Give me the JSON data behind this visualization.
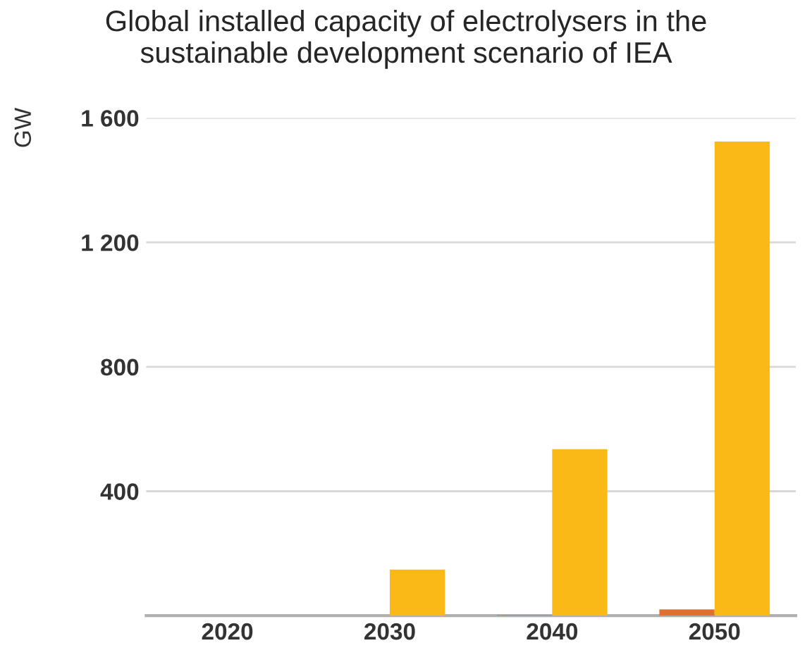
{
  "chart_data": {
    "type": "bar",
    "title": "Global installed capacity of electrolysers in the\nsustainable development scenario of IEA",
    "ylabel": "GW",
    "categories": [
      "2020",
      "2030",
      "2040",
      "2050"
    ],
    "series": [
      {
        "color": "#e07030",
        "values": [
          null,
          null,
          2,
          20
        ]
      },
      {
        "color": "#fbb917",
        "values": [
          0,
          148,
          535,
          1524
        ]
      }
    ],
    "ylim": [
      0,
      1600
    ],
    "yticks": [
      {
        "value": 400,
        "label": "400"
      },
      {
        "value": 800,
        "label": "800"
      },
      {
        "value": 1200,
        "label": "1 200"
      },
      {
        "value": 1600,
        "label": "1 600"
      }
    ],
    "grid": "y",
    "legend": false
  }
}
